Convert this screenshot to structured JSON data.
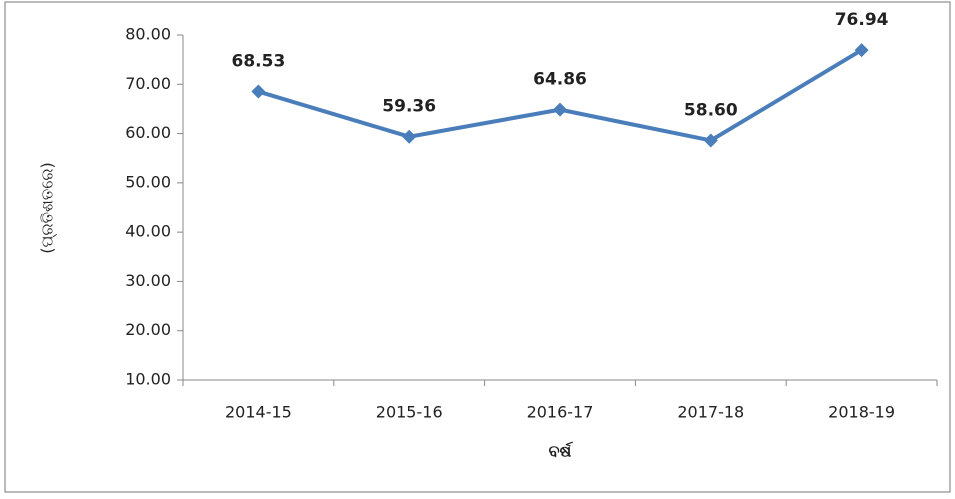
{
  "chart_data": {
    "type": "line",
    "y_label": "(ପ୍ରତିଶତରେ)",
    "x_label": "ବର୍ଷ",
    "categories": [
      "2014-15",
      "2015-16",
      "2016-17",
      "2017-18",
      "2018-19"
    ],
    "series": [
      {
        "color": "#4a7ebb",
        "values": [
          68.53,
          59.36,
          64.86,
          58.6,
          76.94
        ],
        "value_labels": [
          "68.53",
          "59.36",
          "64.86",
          "58.60",
          "76.94"
        ]
      }
    ],
    "ylim": [
      10,
      80
    ],
    "yticks": [
      {
        "value": 10,
        "label": "10.00"
      },
      {
        "value": 20,
        "label": "20.00"
      },
      {
        "value": 30,
        "label": "30.00"
      },
      {
        "value": 40,
        "label": "40.00"
      },
      {
        "value": 50,
        "label": "50.00"
      },
      {
        "value": 60,
        "label": "60.00"
      },
      {
        "value": 70,
        "label": "70.00"
      },
      {
        "value": 80,
        "label": "80.00"
      }
    ],
    "grid": false
  }
}
